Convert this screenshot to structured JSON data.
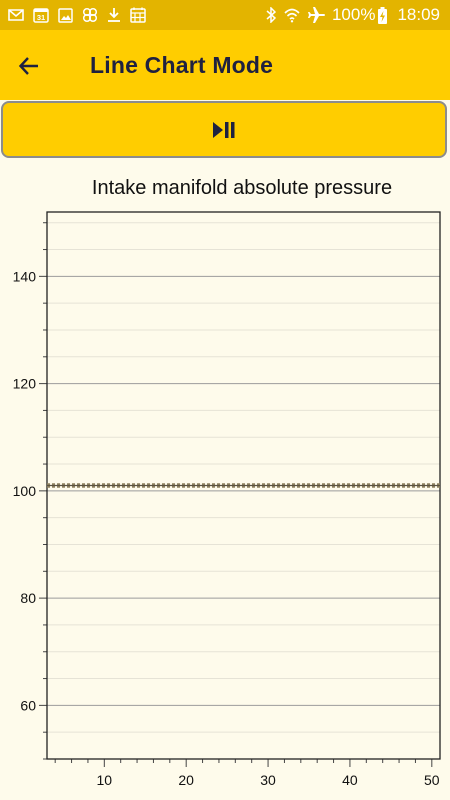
{
  "status_bar": {
    "battery": "100%",
    "time": "18:09",
    "left_icons": [
      "gmail-icon",
      "calendar-icon",
      "image-icon",
      "pinwheel-icon",
      "download-icon",
      "calendar-grid-icon"
    ],
    "right_icons": [
      "bluetooth-icon",
      "wifi-icon",
      "airplane-mode-icon",
      "battery-charging-icon"
    ]
  },
  "app_bar": {
    "title": "Line Chart Mode",
    "back_icon": "arrow-back-icon"
  },
  "controls": {
    "play_pause_icon": "play-pause-icon"
  },
  "colors": {
    "status_bar": "#e3b400",
    "app_bar": "#ffcd00",
    "background": "#fefbeb",
    "title_text": "#1f2140",
    "series_line": "#7d7250"
  },
  "chart_data": {
    "type": "line",
    "title": "Intake manifold absolute pressure",
    "xlabel": "",
    "ylabel": "",
    "xlim": [
      3,
      51
    ],
    "ylim": [
      50,
      152
    ],
    "x_ticks": [
      10,
      20,
      30,
      40,
      50
    ],
    "y_ticks": [
      60,
      80,
      100,
      120,
      140
    ],
    "grid": true,
    "series": [
      {
        "x": [
          3,
          51
        ],
        "values": [
          101,
          101
        ],
        "style": "dotted"
      }
    ]
  }
}
